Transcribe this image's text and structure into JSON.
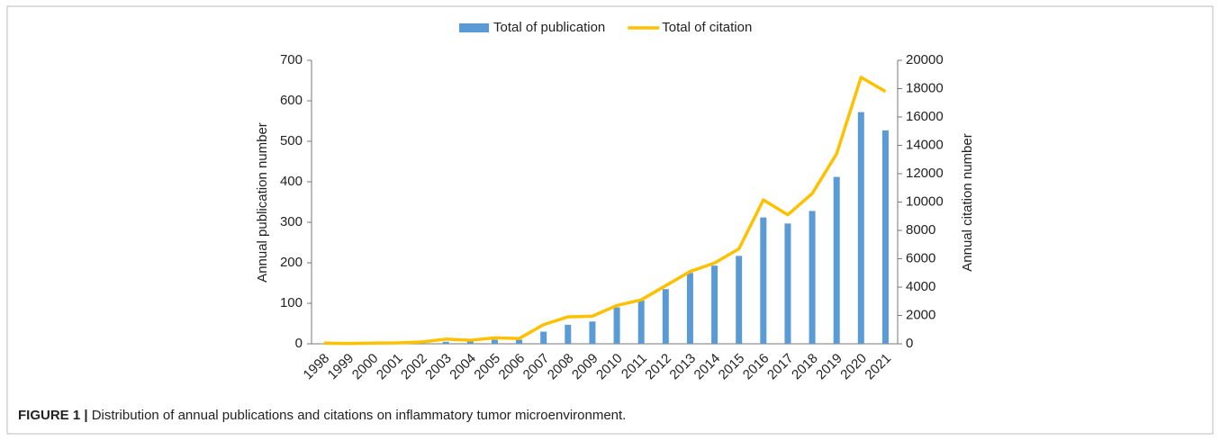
{
  "chart_data": {
    "type": "bar",
    "categories": [
      "1998",
      "1999",
      "2000",
      "2001",
      "2002",
      "2003",
      "2004",
      "2005",
      "2006",
      "2007",
      "2008",
      "2009",
      "2010",
      "2011",
      "2012",
      "2013",
      "2014",
      "2015",
      "2016",
      "2017",
      "2018",
      "2019",
      "2020",
      "2021"
    ],
    "series": [
      {
        "name": "Total of publication",
        "color": "#5b9bd5",
        "type": "bar",
        "axis": "y",
        "values": [
          1,
          0,
          1,
          1,
          2,
          5,
          6,
          10,
          10,
          30,
          47,
          55,
          90,
          107,
          135,
          175,
          193,
          217,
          312,
          297,
          328,
          412,
          572,
          527
        ]
      },
      {
        "name": "Total of citation",
        "color": "#ffc000",
        "type": "line",
        "axis": "y2",
        "values": [
          50,
          20,
          50,
          60,
          130,
          330,
          250,
          420,
          370,
          1350,
          1900,
          1950,
          2700,
          3100,
          4100,
          5100,
          5700,
          6700,
          10150,
          9100,
          10600,
          13400,
          18800,
          17800
        ]
      }
    ],
    "ylabel": "Annual publication number",
    "y2label": "Annual citation number",
    "ylim": [
      0,
      700
    ],
    "yticks": [
      0,
      100,
      200,
      300,
      400,
      500,
      600,
      700
    ],
    "y2lim": [
      0,
      20000
    ],
    "y2ticks": [
      0,
      2000,
      4000,
      6000,
      8000,
      10000,
      12000,
      14000,
      16000,
      18000,
      20000
    ],
    "legend": "top",
    "caption_label": "FIGURE 1 |",
    "caption_text": "Distribution of annual publications and citations on inflammatory tumor microenvironment."
  }
}
